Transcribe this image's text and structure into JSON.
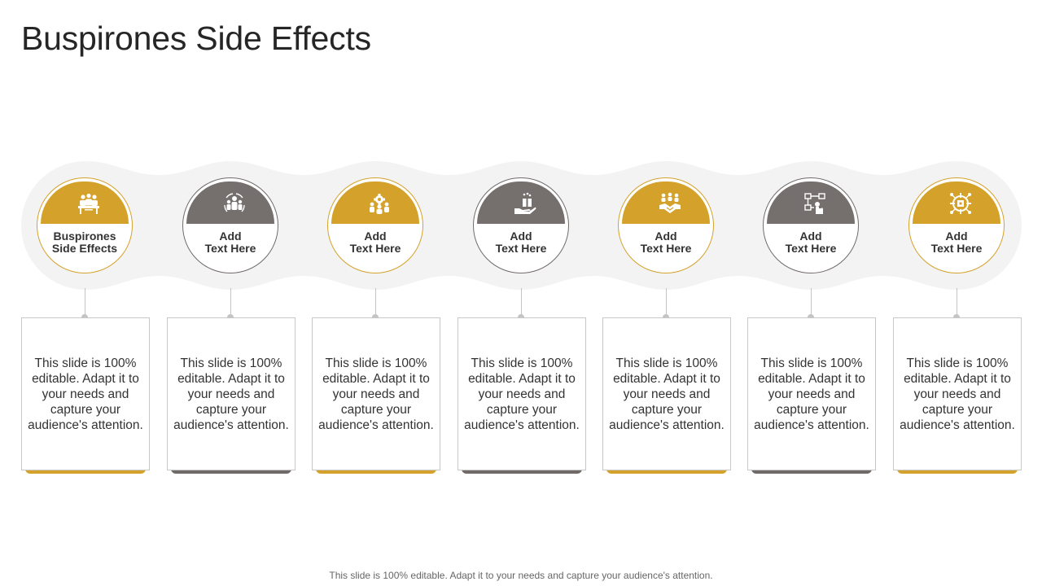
{
  "slide": {
    "title": "Buspirones Side Effects",
    "footer": "This slide is 100% editable. Adapt it to your needs and capture your audience's attention."
  },
  "colors": {
    "gold": "#d4a22b",
    "gray": "#756f6e",
    "band": "#f3f3f3"
  },
  "steps": [
    {
      "label": "Buspirones\nSide Effects",
      "text": "This slide is 100% editable. Adapt it to your needs and capture your audience's attention.",
      "icon": "people-meeting-icon"
    },
    {
      "label": "Add\nText Here",
      "text": "This slide is 100% editable. Adapt it to your needs and capture your audience's attention.",
      "icon": "team-cycle-icon"
    },
    {
      "label": "Add\nText Here",
      "text": "This slide is 100% editable. Adapt it to your needs and capture your audience's attention.",
      "icon": "team-gear-icon"
    },
    {
      "label": "Add\nText Here",
      "text": "This slide is 100% editable. Adapt it to your needs and capture your audience's attention.",
      "icon": "hand-box-icon"
    },
    {
      "label": "Add\nText Here",
      "text": "This slide is 100% editable. Adapt it to your needs and capture your audience's attention.",
      "icon": "handshake-group-icon"
    },
    {
      "label": "Add\nText Here",
      "text": "This slide is 100% editable. Adapt it to your needs and capture your audience's attention.",
      "icon": "workflow-click-icon"
    },
    {
      "label": "Add\nText Here",
      "text": "This slide is 100% editable. Adapt it to your needs and capture your audience's attention.",
      "icon": "target-network-icon"
    }
  ]
}
